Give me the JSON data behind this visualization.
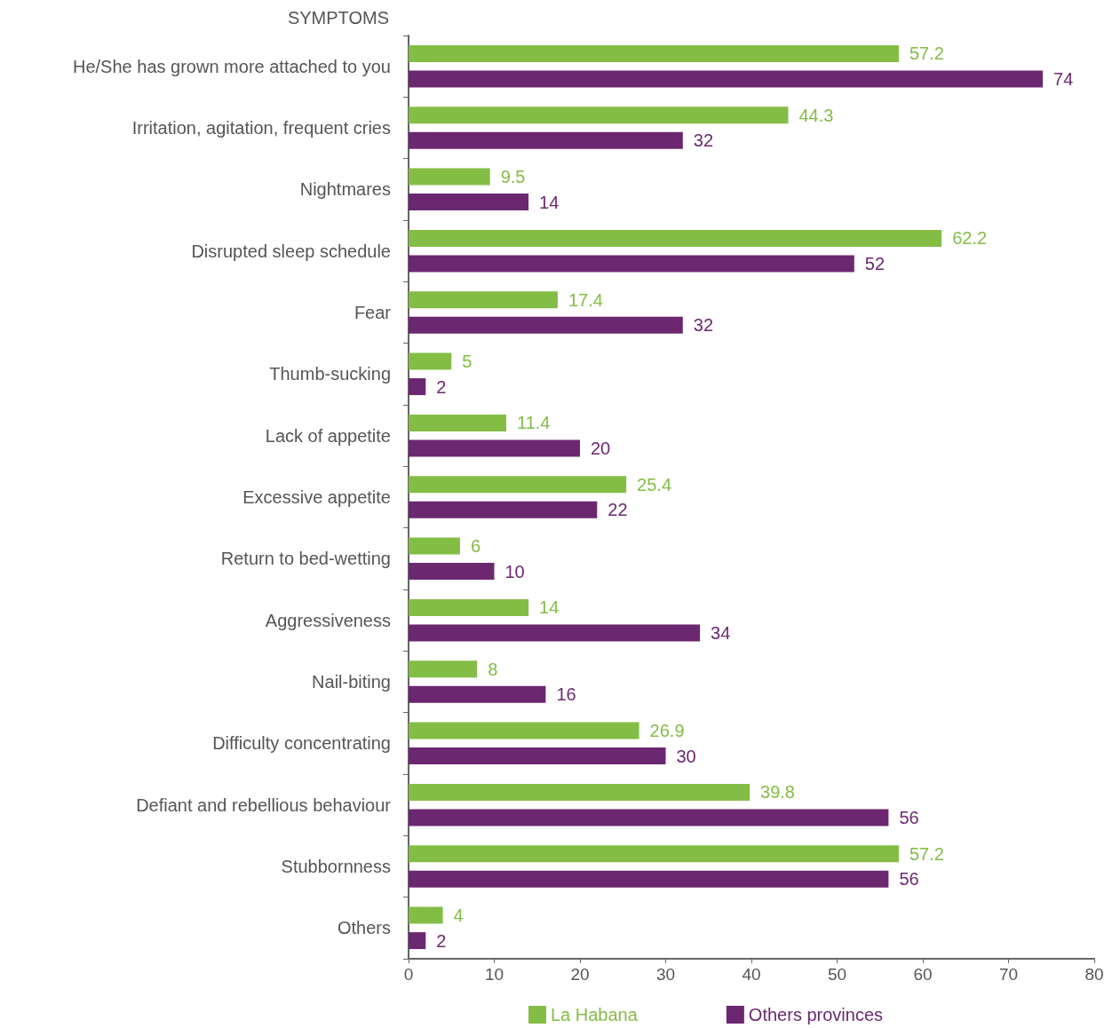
{
  "chart_data": {
    "type": "bar",
    "orientation": "horizontal",
    "ylabel": "SYMPTOMS",
    "categories": [
      "He/She has grown more attached to you",
      "Irritation, agitation, frequent cries",
      "Nightmares",
      "Disrupted sleep schedule",
      "Fear",
      "Thumb-sucking",
      "Lack of appetite",
      "Excessive appetite",
      "Return to bed-wetting",
      "Aggressiveness",
      "Nail-biting",
      "Difficulty concentrating",
      "Defiant and rebellious behaviour",
      "Stubbornness",
      "Others"
    ],
    "series": [
      {
        "name": "La Habana",
        "color": "#84bd46",
        "values": [
          57.2,
          44.3,
          9.5,
          62.2,
          17.4,
          5,
          11.4,
          25.4,
          6,
          14,
          8,
          26.9,
          39.8,
          57.2,
          4
        ]
      },
      {
        "name": "Others provinces",
        "color": "#6b2870",
        "values": [
          74,
          32,
          14,
          52,
          32,
          2,
          20,
          22,
          10,
          34,
          16,
          30,
          56,
          56,
          2
        ]
      }
    ],
    "xlim": [
      0,
      80
    ],
    "xticks": [
      0,
      10,
      20,
      30,
      40,
      50,
      60,
      70,
      80
    ],
    "data_labels": true,
    "grid": false,
    "legend": "bottom"
  }
}
